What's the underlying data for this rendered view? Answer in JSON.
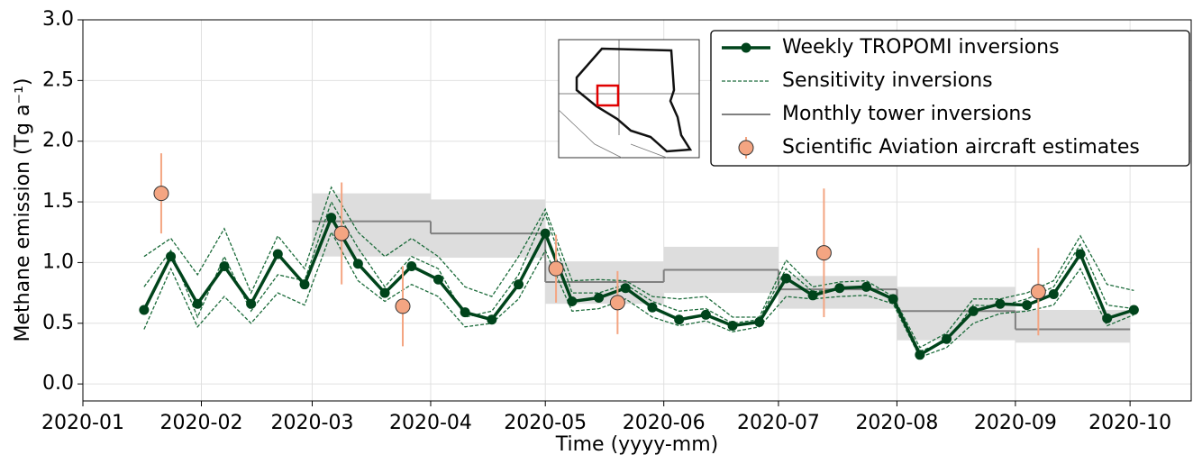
{
  "chart_data": {
    "type": "line",
    "xlabel": "Time (yyyy-mm)",
    "ylabel": "Methane emission (Tg a⁻¹)",
    "x": [
      17,
      24,
      31,
      38,
      45,
      52,
      59,
      66,
      73,
      80,
      87,
      94,
      101,
      108,
      115,
      122,
      129,
      136,
      143,
      150,
      157,
      164,
      171,
      178,
      185,
      192,
      199,
      206,
      213,
      220,
      227,
      234,
      241,
      248,
      255,
      262,
      269,
      276
    ],
    "xlim": [
      1,
      291
    ],
    "xticks": [
      {
        "value": 1,
        "label": "2020-01"
      },
      {
        "value": 32,
        "label": "2020-02"
      },
      {
        "value": 61,
        "label": "2020-03"
      },
      {
        "value": 92,
        "label": "2020-04"
      },
      {
        "value": 122,
        "label": "2020-05"
      },
      {
        "value": 153,
        "label": "2020-06"
      },
      {
        "value": 183,
        "label": "2020-07"
      },
      {
        "value": 214,
        "label": "2020-08"
      },
      {
        "value": 245,
        "label": "2020-09"
      },
      {
        "value": 275,
        "label": "2020-10"
      }
    ],
    "ylim": [
      -0.14,
      3.0
    ],
    "yticks": [
      {
        "value": 0,
        "label": "0.0"
      },
      0.5,
      {
        "value": 1,
        "label": "1.0"
      },
      1.5,
      {
        "value": 2,
        "label": "2.0"
      },
      2.5,
      {
        "value": 3,
        "label": "3.0"
      }
    ],
    "grid": true,
    "legend": "upper right",
    "series": [
      {
        "name": "Weekly TROPOMI inversions",
        "color": "#00441b",
        "values": [
          0.61,
          1.05,
          0.66,
          0.97,
          0.66,
          1.07,
          0.82,
          1.37,
          0.99,
          0.75,
          0.97,
          0.86,
          0.59,
          0.53,
          0.82,
          1.24,
          0.68,
          0.71,
          0.79,
          0.63,
          0.53,
          0.57,
          0.48,
          0.51,
          0.87,
          0.73,
          0.79,
          0.8,
          0.7,
          0.24,
          0.37,
          0.6,
          0.66,
          0.65,
          0.74,
          1.07,
          0.54,
          0.61
        ]
      }
    ],
    "sensitivity": {
      "name": "Sensitivity inversions",
      "color": "#1b6b3a",
      "runs": [
        [
          1.05,
          1.2,
          0.9,
          1.28,
          0.75,
          1.22,
          0.95,
          1.62,
          1.25,
          1.05,
          1.2,
          1.05,
          0.8,
          0.72,
          1.05,
          1.44,
          0.85,
          0.86,
          0.85,
          0.72,
          0.7,
          0.72,
          0.55,
          0.55,
          1.02,
          0.8,
          0.84,
          0.85,
          0.72,
          0.3,
          0.42,
          0.7,
          0.7,
          0.75,
          0.85,
          1.22,
          0.82,
          0.77
        ],
        [
          0.45,
          0.95,
          0.47,
          0.72,
          0.5,
          0.75,
          0.65,
          1.25,
          0.85,
          0.68,
          0.82,
          0.72,
          0.47,
          0.5,
          0.7,
          1.1,
          0.6,
          0.62,
          0.7,
          0.55,
          0.48,
          0.52,
          0.43,
          0.47,
          0.72,
          0.7,
          0.72,
          0.73,
          0.66,
          0.22,
          0.3,
          0.5,
          0.58,
          0.6,
          0.65,
          0.95,
          0.48,
          0.57
        ],
        [
          0.8,
          1.1,
          0.55,
          1.05,
          0.6,
          0.9,
          0.85,
          1.5,
          1.12,
          0.8,
          1.05,
          0.95,
          0.55,
          0.6,
          0.9,
          1.4,
          0.75,
          0.75,
          0.82,
          0.68,
          0.6,
          0.62,
          0.5,
          0.53,
          0.95,
          0.76,
          0.78,
          0.8,
          0.69,
          0.27,
          0.35,
          0.65,
          0.64,
          0.7,
          0.8,
          1.15,
          0.65,
          0.62
        ]
      ]
    },
    "tower": {
      "name": "Monthly tower inversions",
      "color": "#808080",
      "band_color": "#dddddd",
      "edges": [
        61,
        92,
        122,
        153,
        183,
        214,
        245,
        275
      ],
      "values": [
        1.34,
        1.24,
        0.84,
        0.94,
        0.78,
        0.6,
        0.45
      ],
      "lower": [
        1.05,
        1.04,
        0.66,
        0.75,
        0.62,
        0.36,
        0.34
      ],
      "upper": [
        1.57,
        1.52,
        1.01,
        1.13,
        0.89,
        0.8,
        0.61
      ]
    },
    "aircraft": {
      "name": "Scientific Aviation aircraft estimates",
      "color": "#f4a582",
      "x": [
        21.5,
        68.7,
        84.7,
        124.8,
        140.9,
        194.9,
        251
      ],
      "values": [
        1.57,
        1.24,
        0.64,
        0.95,
        0.67,
        1.08,
        0.76
      ],
      "errors": [
        0.33,
        0.42,
        0.33,
        0.28,
        0.26,
        0.53,
        0.36
      ]
    }
  }
}
